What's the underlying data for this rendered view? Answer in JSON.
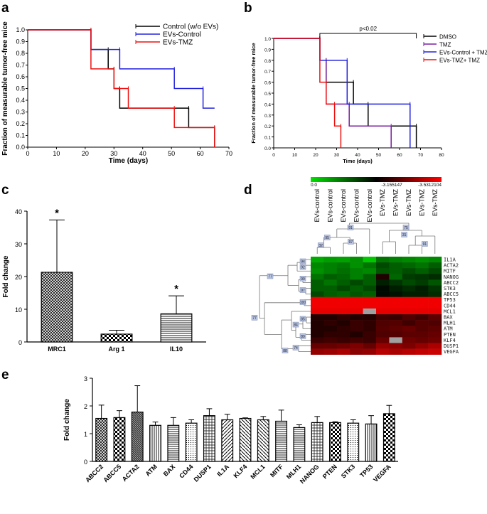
{
  "panels": {
    "a": "a",
    "b": "b",
    "c": "c",
    "d": "d",
    "e": "e"
  },
  "chart_data": [
    {
      "panel": "a",
      "type": "line",
      "xlabel": "Time (days)",
      "ylabel": "Fraction of measurable tumor-free mice",
      "xlim": [
        0,
        70
      ],
      "ylim": [
        0,
        1.0
      ],
      "xticks": [
        0,
        10,
        20,
        30,
        40,
        50,
        60,
        70
      ],
      "yticks": [
        0.0,
        0.1,
        0.2,
        0.3,
        0.4,
        0.5,
        0.6,
        0.7,
        0.8,
        0.9,
        1.0
      ],
      "legend_position": "top-right",
      "series": [
        {
          "name": "Control (w/o EVs)",
          "color": "#000000",
          "x": [
            0,
            22,
            22,
            28,
            28,
            30,
            30,
            32,
            32,
            56,
            56,
            65,
            65
          ],
          "y": [
            1,
            1,
            0.833,
            0.833,
            0.667,
            0.667,
            0.5,
            0.5,
            0.333,
            0.333,
            0.167,
            0.167,
            0
          ]
        },
        {
          "name": "EVs-Control",
          "color": "#2222dd",
          "x": [
            0,
            22,
            22,
            32,
            32,
            51,
            51,
            61,
            61,
            65
          ],
          "y": [
            1,
            1,
            0.833,
            0.833,
            0.667,
            0.667,
            0.5,
            0.5,
            0.333,
            0.333
          ]
        },
        {
          "name": "EVs-TMZ",
          "color": "#ee1111",
          "x": [
            0,
            22,
            22,
            30,
            30,
            35,
            35,
            44,
            44,
            51,
            51,
            65,
            65
          ],
          "y": [
            1,
            1,
            0.667,
            0.667,
            0.5,
            0.5,
            0.333,
            0.333,
            0.333,
            0.333,
            0.167,
            0.167,
            0
          ]
        }
      ]
    },
    {
      "panel": "b",
      "type": "line",
      "xlabel": "Time (days)",
      "ylabel": "Fraction of measurable tumor-free mice",
      "xlim": [
        0,
        80
      ],
      "ylim": [
        0,
        1.0
      ],
      "xticks": [
        0,
        10,
        20,
        30,
        40,
        50,
        60,
        70,
        80
      ],
      "yticks": [
        0.0,
        0.1,
        0.2,
        0.3,
        0.4,
        0.5,
        0.6,
        0.7,
        0.8,
        0.9,
        1.0
      ],
      "annotation": "p<0.02",
      "legend_position": "top-right",
      "series": [
        {
          "name": "DMSO",
          "color": "#000000",
          "x": [
            0,
            22,
            22,
            25,
            25,
            35,
            35,
            38,
            38,
            45,
            45,
            68,
            68
          ],
          "y": [
            1,
            1,
            0.8,
            0.8,
            0.6,
            0.6,
            0.6,
            0.6,
            0.4,
            0.4,
            0.2,
            0.2,
            0
          ]
        },
        {
          "name": "TMZ",
          "color": "#7a1fa0",
          "x": [
            0,
            22,
            22,
            25,
            25,
            36,
            36,
            56,
            56
          ],
          "y": [
            1,
            1,
            0.8,
            0.8,
            0.4,
            0.4,
            0.2,
            0.2,
            0
          ]
        },
        {
          "name": "EVs-Control + TMZ",
          "color": "#2222dd",
          "x": [
            0,
            22,
            22,
            28,
            28,
            35,
            35,
            65,
            65
          ],
          "y": [
            1,
            1,
            0.8,
            0.8,
            0.8,
            0.8,
            0.4,
            0.4,
            0
          ]
        },
        {
          "name": "EVs-TMZ+ TMZ",
          "color": "#ee1111",
          "x": [
            0,
            22,
            22,
            25,
            25,
            29,
            29,
            32,
            32
          ],
          "y": [
            1,
            1,
            0.6,
            0.6,
            0.4,
            0.4,
            0.2,
            0.2,
            0
          ]
        }
      ]
    },
    {
      "panel": "c",
      "type": "bar",
      "ylabel": "Fold change",
      "ylim": [
        0,
        40
      ],
      "yticks": [
        0,
        10,
        20,
        30,
        40
      ],
      "categories": [
        "MRC1",
        "Arg 1",
        "IL10"
      ],
      "values": [
        21.3,
        2.4,
        8.6
      ],
      "errors": [
        16.0,
        1.2,
        5.5
      ],
      "significance": [
        "*",
        "",
        "*"
      ]
    },
    {
      "panel": "d",
      "type": "heatmap",
      "scale_labels": [
        "0.0",
        "-3.155147",
        "-3.5312104"
      ],
      "columns": [
        "EVs-control",
        "EVs-control",
        "EVs-control",
        "EVs-control",
        "EVs-control",
        "EVs-TMZ",
        "EVs-TMZ",
        "EVs-TMZ",
        "EVs-TMZ",
        "EVs-TMZ"
      ],
      "rows": [
        "IL1A",
        "ACTA2",
        "MITF",
        "NANOG",
        "ABCC2",
        "STK3",
        "ABCC5",
        "TP53",
        "CD44",
        "MCL1",
        "BAX",
        "MLH1",
        "ATM",
        "PTEN",
        "KLF4",
        "DUSP1",
        "VEGFA"
      ],
      "column_nodes": [
        "95",
        "32",
        "97",
        "91",
        "75",
        "31",
        "91"
      ],
      "row_nodes": [
        "94",
        "92",
        "77",
        "99",
        "97",
        "100",
        "77",
        "85",
        "84",
        "89",
        "74",
        "88"
      ],
      "values": [
        [
          0.12,
          0.15,
          0.14,
          0.18,
          0.05,
          0.25,
          0.22,
          0.2,
          0.18,
          0.2
        ],
        [
          0.2,
          0.22,
          0.24,
          0.18,
          0.25,
          0.35,
          0.3,
          0.28,
          0.25,
          0.3
        ],
        [
          0.18,
          0.22,
          0.26,
          0.22,
          0.2,
          0.32,
          0.3,
          0.34,
          0.3,
          0.35
        ],
        [
          0.25,
          0.3,
          0.28,
          0.22,
          0.3,
          0.55,
          0.28,
          0.38,
          0.4,
          0.42
        ],
        [
          0.3,
          0.25,
          0.3,
          0.35,
          0.3,
          0.45,
          0.4,
          0.35,
          0.38,
          0.32
        ],
        [
          0.3,
          0.3,
          0.35,
          0.3,
          0.35,
          0.5,
          0.45,
          0.42,
          0.45,
          0.4
        ],
        [
          0.35,
          0.3,
          0.28,
          0.32,
          0.3,
          0.5,
          0.48,
          0.45,
          0.45,
          0.42
        ],
        [
          1,
          1,
          1,
          1,
          1,
          1,
          1,
          1,
          1,
          1
        ],
        [
          1,
          1,
          1,
          1,
          1,
          1,
          1,
          1,
          1,
          1
        ],
        [
          0.98,
          0.98,
          0.98,
          0.98,
          -1,
          0.98,
          0.98,
          0.98,
          0.98,
          0.98
        ],
        [
          0.55,
          0.55,
          0.58,
          0.55,
          0.55,
          0.62,
          0.6,
          0.65,
          0.62,
          0.68
        ],
        [
          0.55,
          0.58,
          0.55,
          0.6,
          0.58,
          0.65,
          0.66,
          0.62,
          0.66,
          0.65
        ],
        [
          0.55,
          0.55,
          0.58,
          0.6,
          0.58,
          0.66,
          0.68,
          0.7,
          0.66,
          0.68
        ],
        [
          0.55,
          0.58,
          0.58,
          0.55,
          0.6,
          0.65,
          0.66,
          0.68,
          0.68,
          0.7
        ],
        [
          0.6,
          0.62,
          0.6,
          0.62,
          0.6,
          0.7,
          -1,
          0.72,
          0.7,
          0.72
        ],
        [
          0.7,
          0.7,
          0.72,
          0.75,
          0.7,
          0.8,
          0.78,
          0.75,
          0.8,
          0.85
        ],
        [
          0.8,
          0.82,
          0.85,
          0.78,
          0.8,
          0.88,
          0.85,
          0.88,
          0.9,
          0.92
        ]
      ]
    },
    {
      "panel": "e",
      "type": "bar",
      "ylabel": "Fold change",
      "ylim": [
        0,
        3
      ],
      "yticks": [
        0,
        1,
        2,
        3
      ],
      "categories": [
        "ABCC2",
        "ABCC5",
        "ACTA2",
        "ATM",
        "BAX",
        "CD44",
        "DUSP1",
        "IL1A",
        "KLF4",
        "MCL1",
        "MITF",
        "MLH1",
        "NANOG",
        "PTEN",
        "STK3",
        "TP53",
        "VEGFA"
      ],
      "values": [
        1.55,
        1.58,
        1.78,
        1.3,
        1.3,
        1.38,
        1.65,
        1.5,
        1.55,
        1.5,
        1.45,
        1.22,
        1.4,
        1.4,
        1.38,
        1.35,
        1.72
      ],
      "errors": [
        0.48,
        0.25,
        0.95,
        0.12,
        0.28,
        0.12,
        0.25,
        0.2,
        0.02,
        0.12,
        0.4,
        0.1,
        0.22,
        0.03,
        0.12,
        0.3,
        0.3
      ]
    }
  ]
}
